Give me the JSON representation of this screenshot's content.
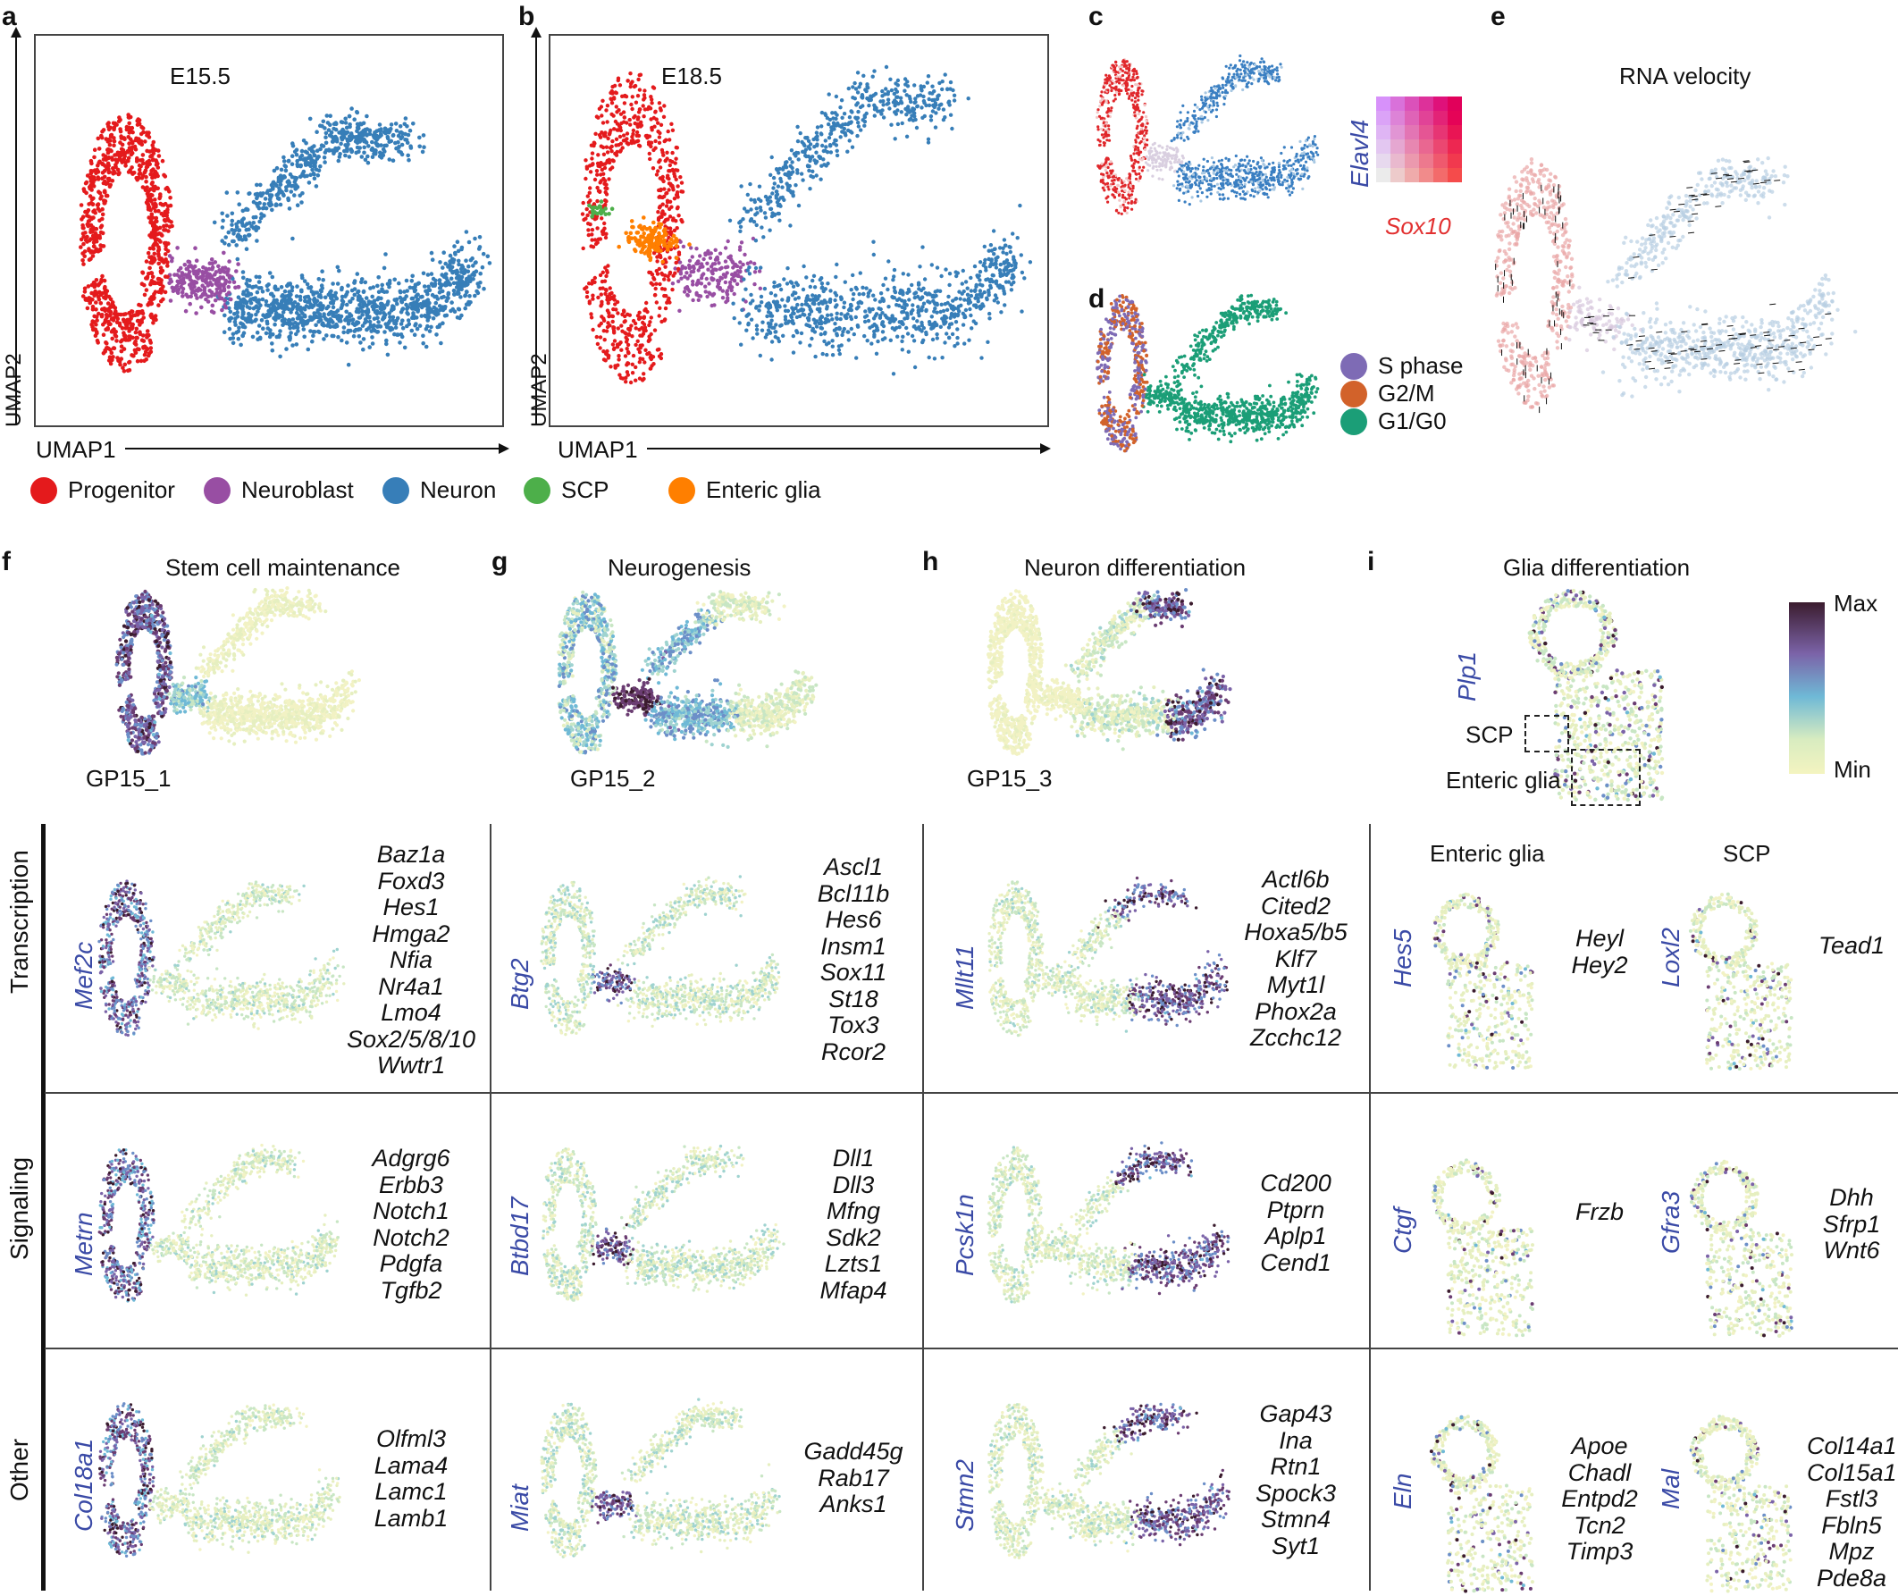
{
  "panels": {
    "a": {
      "letter": "a",
      "title": "E15.5",
      "xaxis": "UMAP1",
      "yaxis": "UMAP2"
    },
    "b": {
      "letter": "b",
      "title": "E18.5",
      "xaxis": "UMAP1",
      "yaxis": "UMAP2"
    },
    "c": {
      "letter": "c",
      "gene_y": "Elavl4",
      "gene_x": "Sox10"
    },
    "d": {
      "letter": "d",
      "legend": [
        "S phase",
        "G2/M",
        "G1/G0"
      ]
    },
    "e": {
      "letter": "e",
      "title": "RNA velocity"
    },
    "f": {
      "letter": "f",
      "title": "Stem cell maintenance",
      "program": "GP15_1"
    },
    "g": {
      "letter": "g",
      "title": "Neurogenesis",
      "program": "GP15_2"
    },
    "h": {
      "letter": "h",
      "title": "Neuron differentiation",
      "program": "GP15_3"
    },
    "i": {
      "letter": "i",
      "title": "Glia differentiation",
      "gene": "Plp1",
      "scp": "SCP",
      "enteric": "Enteric glia"
    }
  },
  "colorbar": {
    "max": "Max",
    "min": "Min"
  },
  "legend": [
    {
      "label": "Progenitor",
      "color": "#e41a1c"
    },
    {
      "label": "Neuroblast",
      "color": "#984ea3"
    },
    {
      "label": "Neuron",
      "color": "#377eb8"
    },
    {
      "label": "SCP",
      "color": "#4daf4a"
    },
    {
      "label": "Enteric glia",
      "color": "#ff7f00"
    }
  ],
  "phase_colors": [
    "#7e6bb5",
    "#d2622a",
    "#1b9e77"
  ],
  "rows": [
    "Transcription",
    "Signaling",
    "Other"
  ],
  "glia_headers": [
    "Enteric glia",
    "SCP"
  ],
  "grid": {
    "transcription": {
      "f": {
        "gene": "Mef2c",
        "list": [
          "Baz1a",
          "Foxd3",
          "Hes1",
          "Hmga2",
          "Nfia",
          "Nr4a1",
          "Lmo4",
          "Sox2/5/8/10",
          "Wwtr1"
        ]
      },
      "g": {
        "gene": "Btg2",
        "list": [
          "Ascl1",
          "Bcl11b",
          "Hes6",
          "Insm1",
          "Sox11",
          "St18",
          "Tox3",
          "Rcor2"
        ]
      },
      "h": {
        "gene": "Mllt11",
        "list": [
          "Actl6b",
          "Cited2",
          "Hoxa5/b5",
          "Klf7",
          "Myt1l",
          "Phox2a",
          "Zcchc12"
        ]
      },
      "i1": {
        "gene": "Hes5",
        "list": [
          "Heyl",
          "Hey2"
        ]
      },
      "i2": {
        "gene": "Loxl2",
        "list": [
          "Tead1"
        ]
      }
    },
    "signaling": {
      "f": {
        "gene": "Metrn",
        "list": [
          "Adgrg6",
          "Erbb3",
          "Notch1",
          "Notch2",
          "Pdgfa",
          "Tgfb2"
        ]
      },
      "g": {
        "gene": "Btbd17",
        "list": [
          "Dll1",
          "Dll3",
          "Mfng",
          "Sdk2",
          "Lzts1",
          "Mfap4"
        ]
      },
      "h": {
        "gene": "Pcsk1n",
        "list": [
          "Cd200",
          "Ptprn",
          "Aplp1",
          "Cend1"
        ]
      },
      "i1": {
        "gene": "Ctgf",
        "list": [
          "Frzb"
        ]
      },
      "i2": {
        "gene": "Gfra3",
        "list": [
          "Dhh",
          "Sfrp1",
          "Wnt6"
        ]
      }
    },
    "other": {
      "f": {
        "gene": "Col18a1",
        "list": [
          "Olfml3",
          "Lama4",
          "Lamc1",
          "Lamb1"
        ]
      },
      "g": {
        "gene": "Miat",
        "list": [
          "Gadd45g",
          "Rab17",
          "Anks1"
        ]
      },
      "h": {
        "gene": "Stmn2",
        "list": [
          "Gap43",
          "Ina",
          "Rtn1",
          "Spock3",
          "Stmn4",
          "Syt1"
        ]
      },
      "i1": {
        "gene": "Eln",
        "list": [
          "Apoe",
          "Chadl",
          "Entpd2",
          "Tcn2",
          "Timp3"
        ]
      },
      "i2": {
        "gene": "Mal",
        "list": [
          "Col14a1",
          "Col15a1",
          "Fstl3",
          "Fbln5",
          "Mpz",
          "Pde8a"
        ]
      }
    }
  }
}
